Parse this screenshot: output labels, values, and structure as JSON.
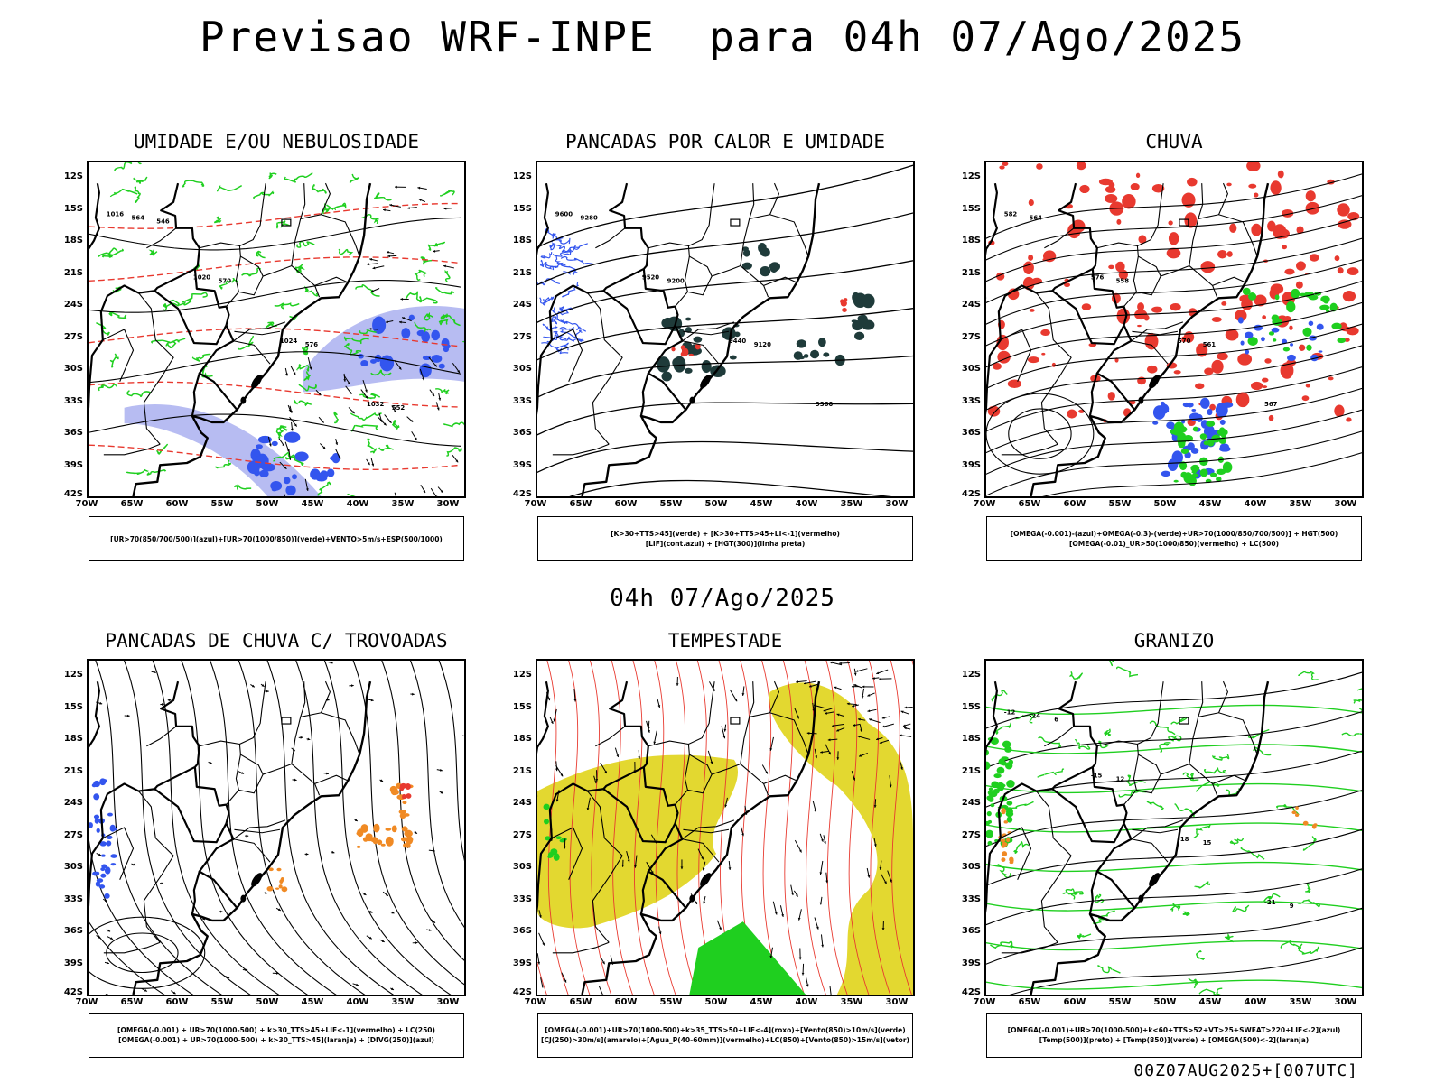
{
  "header": {
    "title": "Previsao WRF-INPE  para 04h 07/Ago/2025"
  },
  "middle_title": "04h 07/Ago/2025",
  "footer": "00Z07AUG2025+[007UTC]",
  "axes": {
    "lat_labels": [
      "12S",
      "15S",
      "18S",
      "21S",
      "24S",
      "27S",
      "30S",
      "33S",
      "36S",
      "39S",
      "42S"
    ],
    "lon_labels": [
      "70W",
      "65W",
      "60W",
      "55W",
      "50W",
      "45W",
      "40W",
      "35W",
      "30W"
    ]
  },
  "colors": {
    "red": "#e8392f",
    "green": "#1fcf1f",
    "blue": "#3355ee",
    "lightblue": "#aab0f0",
    "darkteal": "#1f3b3a",
    "yellow": "#e3d830",
    "orange": "#f08a24",
    "black": "#000000"
  },
  "panels": [
    {
      "title": "UMIDADE E/OU NEBULOSIDADE",
      "legend": [
        "[UR>70(850/700/500)](azul)+[UR>70(1000/850)](verde)+VENTO>5m/s+ESP(500/1000)"
      ],
      "isoline_labels": [
        "1016",
        "1020",
        "1024",
        "1032",
        "564",
        "570",
        "576",
        "552",
        "546"
      ]
    },
    {
      "title": "PANCADAS POR CALOR E UMIDADE",
      "legend": [
        "[K>30+TTS>45](verde) + [K>30+TTS>45+LI<-1](vermelho)",
        "[LIF](cont.azul) + [HGT(300)](linha preta)"
      ],
      "isoline_labels": [
        "9600",
        "9520",
        "9440",
        "9360",
        "9280",
        "9200",
        "9120"
      ]
    },
    {
      "title": "CHUVA",
      "legend": [
        "[OMEGA(-0.001)-(azul)+OMEGA(-0.3)-(verde)+UR>70(1000/850/700/500)] + HGT(500)",
        "[OMEGA(-0.01)_UR>50(1000/850)(vermelho) + LC(500)"
      ],
      "isoline_labels": [
        "582",
        "576",
        "570",
        "567",
        "564",
        "558",
        "561"
      ]
    },
    {
      "title": "PANCADAS DE CHUVA C/ TROVOADAS",
      "legend": [
        "[OMEGA(-0.001) + UR>70(1000-500) + k>30_TTS>45+LIF<-1](vermelho) + LC(250)",
        "[OMEGA(-0.001) + UR>70(1000-500) + k>30_TTS>45](laranja) + [DIVG(250)](azul)"
      ],
      "isoline_labels": []
    },
    {
      "title": "TEMPESTADE",
      "legend": [
        "[OMEGA(-0.001)+UR>70(1000-500)+k>35_TTS>50+LIF<-4](roxo)+[Vento(850)>10m/s](verde)",
        "[CJ(250)>30m/s](amarelo)+[Agua_P(40-60mm)](vermelho)+LC(850)+[Vento(850)>15m/s](vetor)"
      ],
      "isoline_labels": []
    },
    {
      "title": "GRANIZO",
      "legend": [
        "[OMEGA(-0.001)+UR>70(1000-500)+k<60+TTS>52+VT>25+SWEAT>220+LIF<-2](azul)",
        "[Temp(500)](preto) + [Temp(850)](verde) + [OMEGA(500)<-2](laranja)"
      ],
      "isoline_labels": [
        "-12",
        "-15",
        "-18",
        "-21",
        "-24",
        "12",
        "15",
        "9",
        "6"
      ]
    }
  ]
}
